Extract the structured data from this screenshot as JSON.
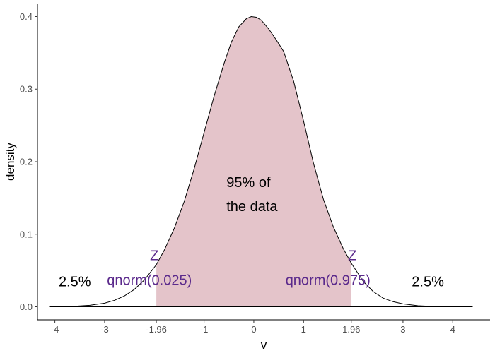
{
  "chart_data": {
    "type": "area",
    "xlabel": "v",
    "ylabel": "density",
    "xlim": [
      -4.35,
      4.75
    ],
    "ylim": [
      -0.018,
      0.418
    ],
    "x_ticks": [
      {
        "value": -4,
        "label": "-4"
      },
      {
        "value": -3,
        "label": "-3"
      },
      {
        "value": -1.96,
        "label": "-1.96"
      },
      {
        "value": -1,
        "label": "-1"
      },
      {
        "value": 0,
        "label": "0"
      },
      {
        "value": 1,
        "label": "1"
      },
      {
        "value": 1.96,
        "label": "1.96"
      },
      {
        "value": 3,
        "label": "3"
      },
      {
        "value": 4,
        "label": "4"
      }
    ],
    "y_ticks": [
      {
        "value": 0.0,
        "label": "0.0"
      },
      {
        "value": 0.1,
        "label": "0.1"
      },
      {
        "value": 0.2,
        "label": "0.2"
      },
      {
        "value": 0.3,
        "label": "0.3"
      },
      {
        "value": 0.4,
        "label": "0.4"
      }
    ],
    "grid": false,
    "density_curve": {
      "x": [
        -4.1,
        -3.9,
        -3.6,
        -3.3,
        -3.0,
        -2.8,
        -2.6,
        -2.4,
        -2.2,
        -1.96,
        -1.8,
        -1.6,
        -1.4,
        -1.2,
        -1.0,
        -0.8,
        -0.6,
        -0.45,
        -0.3,
        -0.15,
        -0.05,
        0.05,
        0.15,
        0.3,
        0.45,
        0.6,
        0.8,
        1.0,
        1.2,
        1.4,
        1.6,
        1.8,
        1.96,
        2.2,
        2.4,
        2.6,
        2.8,
        3.0,
        3.3,
        3.6,
        3.9,
        4.2,
        4.4
      ],
      "y": [
        0.0,
        0.0003,
        0.0008,
        0.002,
        0.005,
        0.009,
        0.015,
        0.024,
        0.037,
        0.058,
        0.078,
        0.108,
        0.145,
        0.19,
        0.24,
        0.29,
        0.335,
        0.365,
        0.386,
        0.397,
        0.4,
        0.399,
        0.395,
        0.383,
        0.368,
        0.352,
        0.311,
        0.256,
        0.198,
        0.148,
        0.11,
        0.08,
        0.06,
        0.035,
        0.021,
        0.012,
        0.007,
        0.004,
        0.0015,
        0.0005,
        0.0002,
        0.0,
        0.0
      ],
      "line_color": "#000000"
    },
    "shaded_region": {
      "from": -1.96,
      "to": 1.96,
      "color": "#e4c4ca"
    },
    "annotations": [
      {
        "id": "left-tail",
        "text": "2.5%",
        "x": -3.6,
        "y": 0.028,
        "color": "#000000",
        "anchor": "middle"
      },
      {
        "id": "right-tail",
        "text": "2.5%",
        "x": 3.5,
        "y": 0.028,
        "color": "#000000",
        "anchor": "middle"
      },
      {
        "id": "center-line1",
        "text": "95% of",
        "x": -0.55,
        "y": 0.165,
        "color": "#000000",
        "anchor": "start"
      },
      {
        "id": "center-line2",
        "text": "the data",
        "x": -0.55,
        "y": 0.132,
        "color": "#000000",
        "anchor": "start"
      },
      {
        "id": "left-z",
        "text": "Z",
        "x": -2.0,
        "y": 0.064,
        "color": "#5b2a8c",
        "anchor": "middle"
      },
      {
        "id": "left-qnorm",
        "text": "qnorm(0.025)",
        "x": -2.1,
        "y": 0.03,
        "color": "#5b2a8c",
        "anchor": "middle"
      },
      {
        "id": "right-z",
        "text": "Z",
        "x": 1.98,
        "y": 0.064,
        "color": "#5b2a8c",
        "anchor": "middle"
      },
      {
        "id": "right-qnorm",
        "text": "qnorm(0.975)",
        "x": 1.49,
        "y": 0.03,
        "color": "#5b2a8c",
        "anchor": "middle"
      }
    ]
  }
}
